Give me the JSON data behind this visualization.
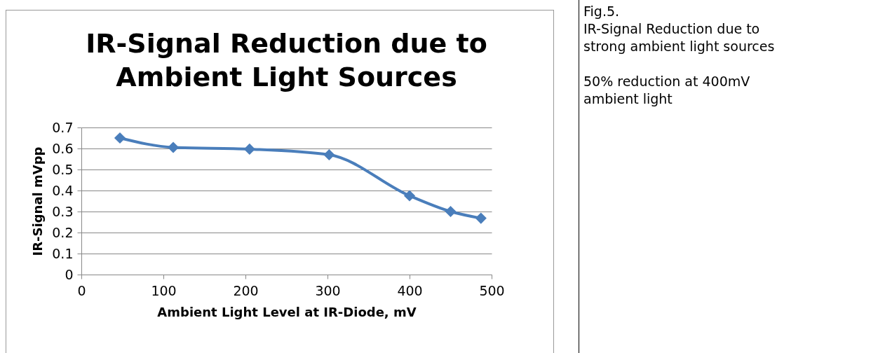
{
  "chart_data": {
    "type": "line",
    "title": "IR-Signal Reduction due to Ambient Light Sources",
    "xlabel": "Ambient Light Level at IR-Diode, mV",
    "ylabel": "IR-Signal mVpp",
    "x": [
      47,
      112,
      205,
      302,
      400,
      450,
      487
    ],
    "series": [
      {
        "color": "#4a7ebb",
        "values": [
          0.65,
          0.605,
          0.597,
          0.57,
          0.375,
          0.3,
          0.268
        ]
      }
    ],
    "xlim": [
      0,
      500
    ],
    "xticks": [
      0,
      100,
      200,
      300,
      400,
      500
    ],
    "ylim": [
      0,
      0.7
    ],
    "yticks": [
      0,
      0.1,
      0.2,
      0.3,
      0.4,
      0.5,
      0.6,
      0.7
    ],
    "grid": "y",
    "marker": "diamond",
    "line_style": "solid",
    "annotations": [
      "Fig.5.",
      "IR-Signal Reduction due to strong ambient light sources",
      "50% reduction at 400mV ambient light"
    ]
  }
}
